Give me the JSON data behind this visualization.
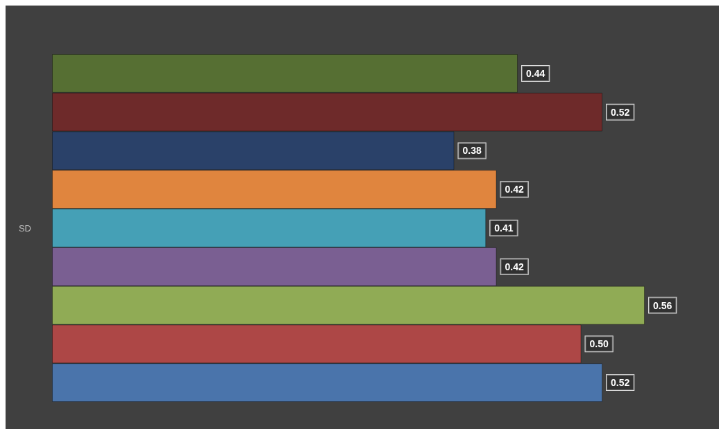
{
  "chart_data": {
    "type": "bar",
    "orientation": "horizontal",
    "ylabel": "SD",
    "value_labels": [
      "0.44",
      "0.52",
      "0.38",
      "0.42",
      "0.41",
      "0.42",
      "0.56",
      "0.50",
      "0.52"
    ],
    "categories": [
      null,
      null,
      null,
      null,
      null,
      null,
      null,
      null,
      null
    ],
    "values": [
      0.44,
      0.52,
      0.38,
      0.42,
      0.41,
      0.42,
      0.56,
      0.5,
      0.52
    ],
    "colors": [
      "#566f33",
      "#6e2a2a",
      "#2a4169",
      "#e0853e",
      "#45a0b6",
      "#7a5f92",
      "#90ab55",
      "#ad4746",
      "#4a74ab"
    ]
  }
}
